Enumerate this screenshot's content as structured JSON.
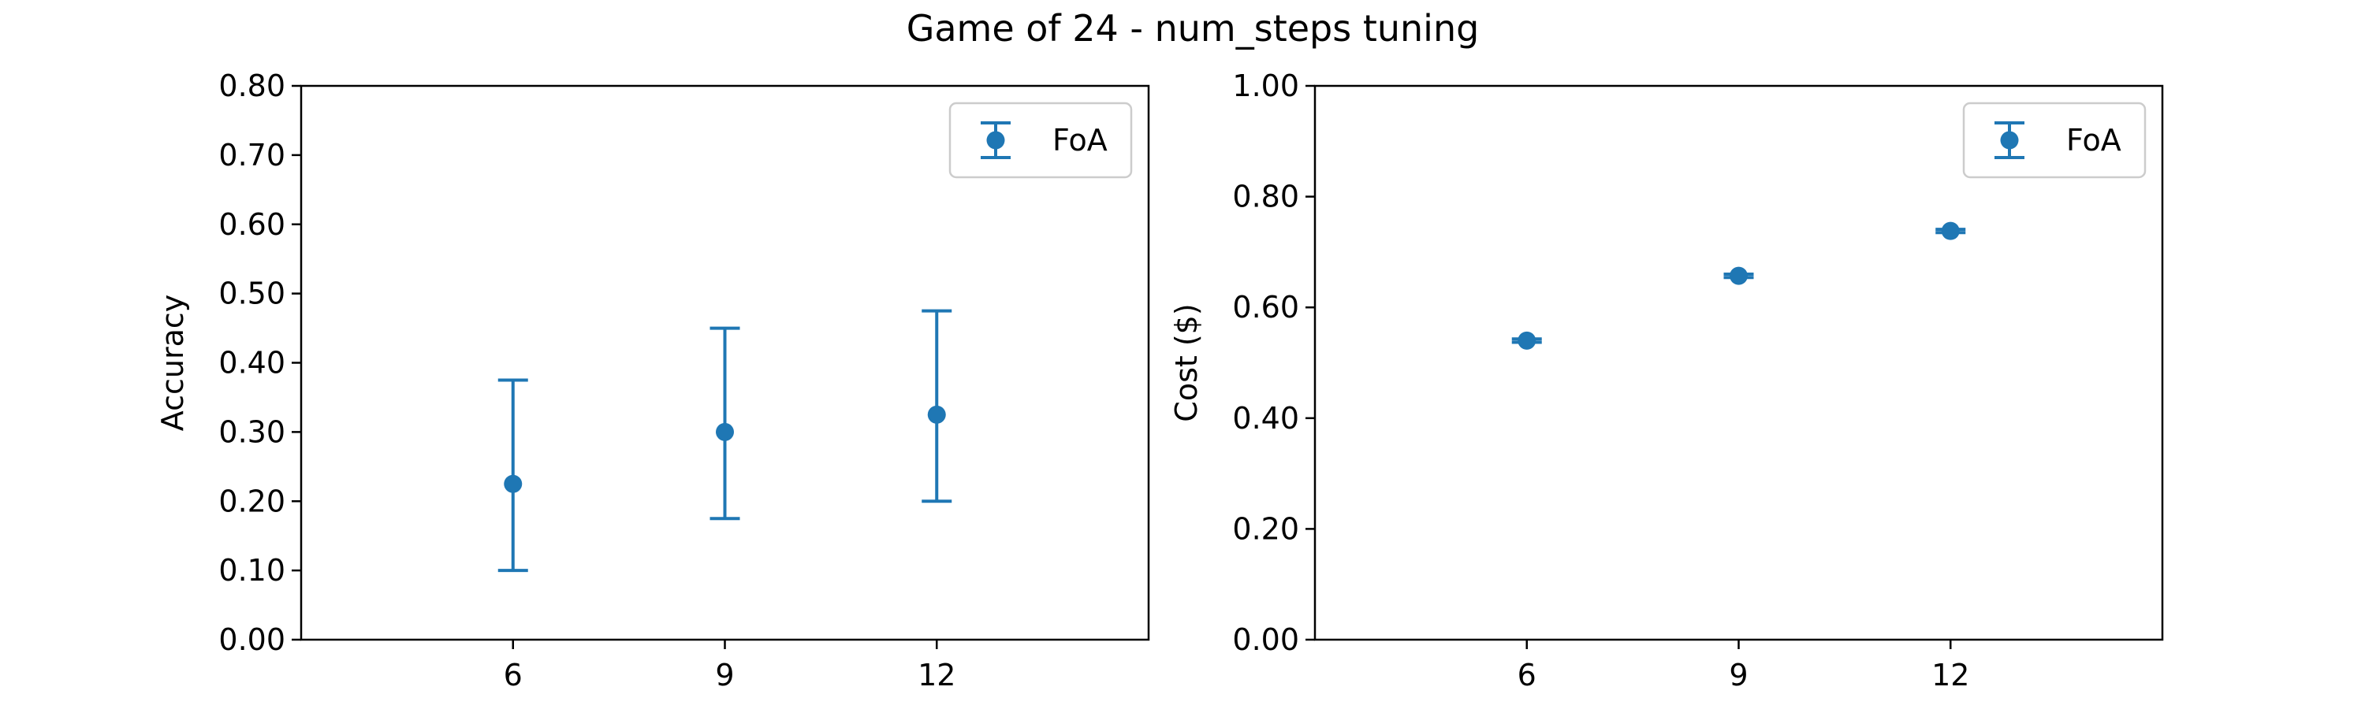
{
  "title": "Game of 24 - num_steps tuning",
  "colors": {
    "series": "#1f77b4",
    "axis": "#000000",
    "legend_border": "#cccccc"
  },
  "chart_data": [
    {
      "type": "scatter",
      "name": "accuracy",
      "xlabel": "",
      "ylabel": "Accuracy",
      "xlim": [
        3,
        15
      ],
      "xticks": [
        6,
        9,
        12
      ],
      "ylim": [
        0,
        0.8
      ],
      "yticks": [
        0,
        0.1,
        0.2,
        0.3,
        0.4,
        0.5,
        0.6,
        0.7,
        0.8
      ],
      "ytick_labels": [
        "0.00",
        "0.10",
        "0.20",
        "0.30",
        "0.40",
        "0.50",
        "0.60",
        "0.70",
        "0.80"
      ],
      "legend": {
        "label": "FoA",
        "location": "top-right"
      },
      "series": [
        {
          "name": "FoA",
          "x": [
            6,
            9,
            12
          ],
          "y": [
            0.225,
            0.3,
            0.325
          ],
          "err_low": [
            0.1,
            0.175,
            0.2
          ],
          "err_high": [
            0.375,
            0.45,
            0.475
          ]
        }
      ]
    },
    {
      "type": "scatter",
      "name": "cost",
      "xlabel": "",
      "ylabel": "Cost ($)",
      "xlim": [
        3,
        15
      ],
      "xticks": [
        6,
        9,
        12
      ],
      "ylim": [
        0,
        1.0
      ],
      "yticks": [
        0,
        0.2,
        0.4,
        0.6,
        0.8,
        1.0
      ],
      "ytick_labels": [
        "0.00",
        "0.20",
        "0.40",
        "0.60",
        "0.80",
        "1.00"
      ],
      "legend": {
        "label": "FoA",
        "location": "top-right"
      },
      "series": [
        {
          "name": "FoA",
          "x": [
            6,
            9,
            12
          ],
          "y": [
            0.54,
            0.657,
            0.738
          ],
          "err_low": [
            0.537,
            0.654,
            0.735
          ],
          "err_high": [
            0.543,
            0.66,
            0.741
          ]
        }
      ]
    }
  ]
}
